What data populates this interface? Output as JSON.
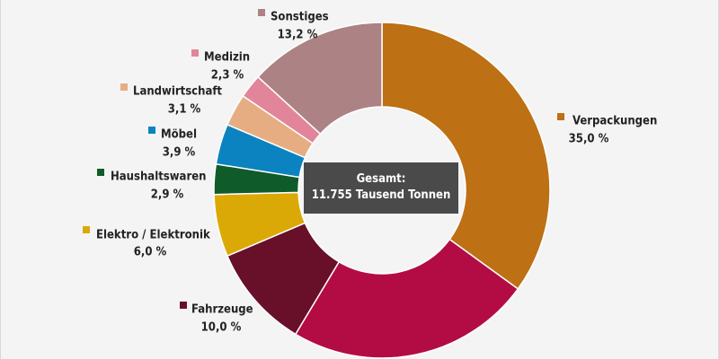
{
  "chart_data": {
    "type": "pie",
    "donut": true,
    "start_angle_deg": 0,
    "direction": "clockwise",
    "slices": [
      {
        "name": "Verpackungen",
        "value": 35.0,
        "label": "35,0 %",
        "color": "#bd7014"
      },
      {
        "name": "",
        "value": 23.6,
        "label": "",
        "color": "#b30c45"
      },
      {
        "name": "Fahrzeuge",
        "value": 10.0,
        "label": "10,0 %",
        "color": "#680f2a"
      },
      {
        "name": "Elektro / Elektronik",
        "value": 6.0,
        "label": "6,0 %",
        "color": "#dba905"
      },
      {
        "name": "Haushaltswaren",
        "value": 2.9,
        "label": "2,9 %",
        "color": "#0f5c2a"
      },
      {
        "name": "Möbel",
        "value": 3.9,
        "label": "3,9 %",
        "color": "#0a83c0"
      },
      {
        "name": "Landwirtschaft",
        "value": 3.1,
        "label": "3,1 %",
        "color": "#e7ad82"
      },
      {
        "name": "Medizin",
        "value": 2.3,
        "label": "2,3 %",
        "color": "#e2859a"
      },
      {
        "name": "Sonstiges",
        "value": 13.2,
        "label": "13,2 %",
        "color": "#ad8284"
      }
    ],
    "center_label": [
      "Gesamt:",
      "11.755 Tausend Tonnen"
    ],
    "title": ""
  }
}
